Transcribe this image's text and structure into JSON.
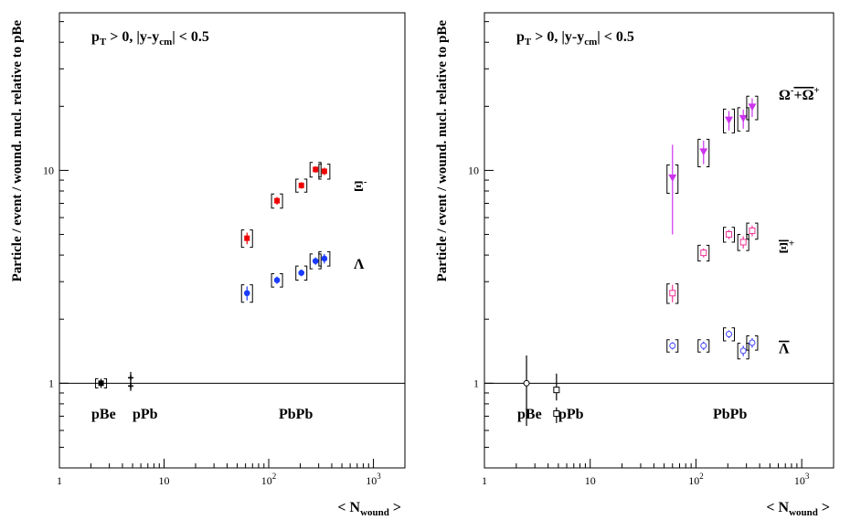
{
  "chart_data": [
    {
      "type": "scatter",
      "x_scale": "log",
      "y_scale": "log",
      "xlim": [
        1,
        2000
      ],
      "ylim": [
        0.4,
        55
      ],
      "x_ticks": [
        {
          "value": 1,
          "label": "1"
        },
        {
          "value": 10,
          "label": "10"
        },
        {
          "value": 100,
          "label": "10",
          "exp": "2"
        },
        {
          "value": 1000,
          "label": "10",
          "exp": "3"
        }
      ],
      "y_ticks": [
        {
          "value": 1,
          "label": "1"
        },
        {
          "value": 10,
          "label": "10"
        }
      ],
      "reference_line": 1,
      "xlabel": {
        "main": "< N",
        "sub": "wound",
        "tail": " >"
      },
      "ylabel": "Particle / event / wound. nucl. relative to pBe",
      "header": {
        "p": "p",
        "p_sub": "T",
        "rest": " > 0,   |y-y",
        "cm_sub": "cm",
        "tail": "| < 0.5"
      },
      "system_labels": [
        "pBe",
        "pPb",
        "PbPb"
      ],
      "series": [
        {
          "name": "Ξ⁻",
          "color": "#ee0000",
          "marker": "square-filled",
          "points": [
            {
              "x": 62,
              "y": 4.8,
              "err": 0.3,
              "sys": 0.45
            },
            {
              "x": 120,
              "y": 7.2,
              "err": 0.3,
              "sys": 0.55
            },
            {
              "x": 205,
              "y": 8.5,
              "err": 0.3,
              "sys": 0.6
            },
            {
              "x": 280,
              "y": 10.1,
              "err": 0.35,
              "sys": 0.8
            },
            {
              "x": 340,
              "y": 9.9,
              "err": 0.4,
              "sys": 0.8
            }
          ]
        },
        {
          "name": "Λ",
          "color": "#1a3cff",
          "marker": "circle-filled",
          "points": [
            {
              "x": 62,
              "y": 2.65,
              "err": 0.2,
              "sys": 0.25
            },
            {
              "x": 120,
              "y": 3.05,
              "err": 0.12,
              "sys": 0.22
            },
            {
              "x": 205,
              "y": 3.3,
              "err": 0.12,
              "sys": 0.25
            },
            {
              "x": 280,
              "y": 3.75,
              "err": 0.15,
              "sys": 0.3
            },
            {
              "x": 340,
              "y": 3.85,
              "err": 0.2,
              "sys": 0.3
            }
          ]
        },
        {
          "name": "pBe",
          "color": "#000000",
          "marker": "square-filled",
          "points": [
            {
              "x": 2.5,
              "y": 1.0,
              "err": 0.05,
              "sys": 0.05
            }
          ]
        },
        {
          "name": "pPb",
          "color": "#000000",
          "marker": "star",
          "points": [
            {
              "x": 4.8,
              "y": 1.06,
              "err": 0.07,
              "sys": 0
            },
            {
              "x": 4.8,
              "y": 0.97,
              "err": 0.05,
              "sys": 0
            }
          ]
        }
      ],
      "series_labels": [
        {
          "text": "Ξ",
          "sup": "-",
          "ref_y": 8.0
        },
        {
          "text": "Λ",
          "sup": "",
          "ref_y": 3.45
        }
      ]
    },
    {
      "type": "scatter",
      "x_scale": "log",
      "y_scale": "log",
      "xlim": [
        1,
        2000
      ],
      "ylim": [
        0.4,
        55
      ],
      "x_ticks": [
        {
          "value": 1,
          "label": "1"
        },
        {
          "value": 10,
          "label": "10"
        },
        {
          "value": 100,
          "label": "10",
          "exp": "2"
        },
        {
          "value": 1000,
          "label": "10",
          "exp": "3"
        }
      ],
      "y_ticks": [
        {
          "value": 1,
          "label": "1"
        },
        {
          "value": 10,
          "label": "10"
        }
      ],
      "reference_line": 1,
      "xlabel": {
        "main": "< N",
        "sub": "wound",
        "tail": " >"
      },
      "ylabel": "Particle / event / wound. nucl. relative to pBe",
      "header": {
        "p": "p",
        "p_sub": "T",
        "rest": " > 0,   |y-y",
        "cm_sub": "cm",
        "tail": "| < 0.5"
      },
      "system_labels": [
        "pBe",
        "pPb",
        "PbPb"
      ],
      "series": [
        {
          "name": "Ω⁻+Ω̄⁺",
          "color": "#cc33ee",
          "marker": "triangle-down",
          "points": [
            {
              "x": 60,
              "y": 9.2,
              "err_up": 4.0,
              "err_dn": 4.2,
              "sys": 1.4
            },
            {
              "x": 118,
              "y": 12.2,
              "err_up": 1.6,
              "err_dn": 1.5,
              "sys": 1.8
            },
            {
              "x": 205,
              "y": 17.2,
              "err_up": 1.8,
              "err_dn": 1.8,
              "sys": 2.2
            },
            {
              "x": 280,
              "y": 17.5,
              "err_up": 1.8,
              "err_dn": 1.8,
              "sys": 2.2
            },
            {
              "x": 340,
              "y": 19.8,
              "err_up": 2.0,
              "err_dn": 2.0,
              "sys": 2.5
            }
          ]
        },
        {
          "name": "Ξ̄⁺",
          "color": "#ee3399",
          "marker": "square-open",
          "points": [
            {
              "x": 60,
              "y": 2.65,
              "err": 0.25,
              "sys": 0.28
            },
            {
              "x": 118,
              "y": 4.1,
              "err": 0.2,
              "sys": 0.35
            },
            {
              "x": 205,
              "y": 5.0,
              "err": 0.25,
              "sys": 0.4
            },
            {
              "x": 280,
              "y": 4.6,
              "err": 0.3,
              "sys": 0.4
            },
            {
              "x": 340,
              "y": 5.2,
              "err": 0.3,
              "sys": 0.45
            }
          ]
        },
        {
          "name": "Λ̄",
          "color": "#4444ff",
          "marker": "circle-open",
          "points": [
            {
              "x": 60,
              "y": 1.5,
              "err": 0.06,
              "sys": 0.1
            },
            {
              "x": 118,
              "y": 1.5,
              "err": 0.07,
              "sys": 0.1
            },
            {
              "x": 205,
              "y": 1.7,
              "err": 0.07,
              "sys": 0.12
            },
            {
              "x": 280,
              "y": 1.42,
              "err": 0.08,
              "sys": 0.12
            },
            {
              "x": 340,
              "y": 1.55,
              "err": 0.08,
              "sys": 0.12
            }
          ]
        },
        {
          "name": "pBe",
          "color": "#000000",
          "marker": "circle-open",
          "points": [
            {
              "x": 2.5,
              "y": 1.0,
              "err_up": 0.35,
              "err_dn": 0.37,
              "sys": 0
            }
          ]
        },
        {
          "name": "pPb",
          "color": "#000000",
          "marker": "square-open",
          "points": [
            {
              "x": 4.8,
              "y": 0.93,
              "err_up": 0.18,
              "err_dn": 0.1,
              "sys": 0
            },
            {
              "x": 4.8,
              "y": 0.72,
              "err_up": 0.05,
              "err_dn": 0.07,
              "sys": 0
            }
          ]
        }
      ],
      "series_labels": [
        {
          "text": "Ω",
          "sup": "-",
          "text2": "+Ω",
          "sup2": "+",
          "overline2": true,
          "ref_y": 21.5
        },
        {
          "text": "Ξ",
          "sup": "+",
          "overline": true,
          "ref_y": 4.1
        },
        {
          "text": "Λ",
          "sup": "",
          "overline": true,
          "ref_y": 1.38
        }
      ]
    }
  ]
}
